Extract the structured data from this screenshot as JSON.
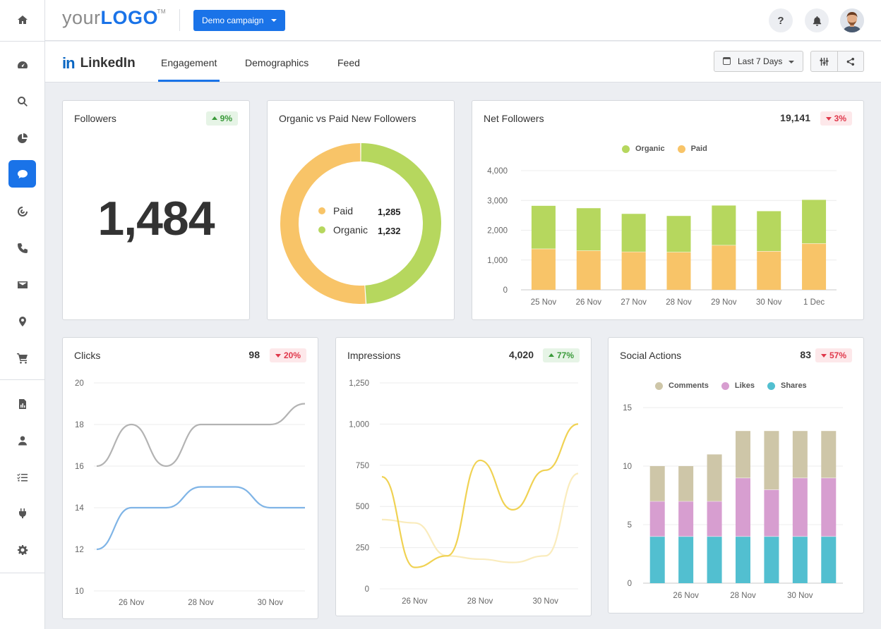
{
  "topbar": {
    "logo_part1": "your",
    "logo_part2": "LOGO",
    "logo_tm": "TM",
    "campaign_label": "Demo campaign",
    "help_label": "?"
  },
  "subnav": {
    "brand_icon": "in",
    "brand_label": "LinkedIn",
    "tabs": [
      {
        "label": "Engagement",
        "active": true
      },
      {
        "label": "Demographics",
        "active": false
      },
      {
        "label": "Feed",
        "active": false
      }
    ],
    "date_range": "Last 7 Days"
  },
  "sidebar": {
    "items": [
      {
        "icon": "home-icon"
      },
      {
        "icon": "dashboard-icon"
      },
      {
        "icon": "search-icon"
      },
      {
        "icon": "pie-chart-icon"
      },
      {
        "icon": "chat-bubble-icon",
        "active": true
      },
      {
        "icon": "target-icon"
      },
      {
        "icon": "phone-icon"
      },
      {
        "icon": "mail-icon"
      },
      {
        "icon": "location-pin-icon"
      },
      {
        "icon": "cart-icon"
      },
      {
        "icon": "report-icon"
      },
      {
        "icon": "user-icon"
      },
      {
        "icon": "checklist-icon"
      },
      {
        "icon": "plug-icon"
      },
      {
        "icon": "gear-icon"
      }
    ]
  },
  "colors": {
    "accent": "#1a73e8",
    "organic": "#b6d75e",
    "paid": "#f8c468",
    "comments": "#cec6a8",
    "likes": "#d79ed0",
    "shares": "#52bfd0",
    "clicks_a": "#b3b3b3",
    "clicks_b": "#7fb4e6",
    "impressions_a": "#f0d253",
    "impressions_b": "#faecbd",
    "up": "#3a9a3a",
    "down": "#e0384b"
  },
  "followers": {
    "title": "Followers",
    "value": "1,484",
    "change": "9%",
    "direction": "up"
  },
  "organic_vs_paid": {
    "title": "Organic vs Paid New Followers",
    "legend": [
      {
        "label": "Paid",
        "value": "1,285",
        "color": "#f8c468"
      },
      {
        "label": "Organic",
        "value": "1,232",
        "color": "#b6d75e"
      }
    ]
  },
  "net_followers": {
    "title": "Net Followers",
    "total": "19,141",
    "change": "3%",
    "direction": "down"
  },
  "clicks": {
    "title": "Clicks",
    "total": "98",
    "change": "20%",
    "direction": "down"
  },
  "impressions": {
    "title": "Impressions",
    "total": "4,020",
    "change": "77%",
    "direction": "up"
  },
  "social_actions": {
    "title": "Social Actions",
    "total": "83",
    "change": "57%",
    "direction": "down"
  },
  "chart_data": [
    {
      "id": "organic_vs_paid",
      "type": "pie",
      "donut": true,
      "labels": [
        "Paid",
        "Organic"
      ],
      "values": [
        1285,
        1232
      ]
    },
    {
      "id": "net_followers",
      "type": "bar",
      "stacked": true,
      "categories": [
        "25 Nov",
        "26 Nov",
        "27 Nov",
        "28 Nov",
        "29 Nov",
        "30 Nov",
        "1 Dec"
      ],
      "series": [
        {
          "name": "Paid",
          "values": [
            1380,
            1320,
            1280,
            1270,
            1500,
            1300,
            1560
          ]
        },
        {
          "name": "Organic",
          "values": [
            1440,
            1420,
            1270,
            1210,
            1330,
            1340,
            1460
          ]
        }
      ],
      "ylim": [
        0,
        4000
      ],
      "yticks": [
        "0",
        "1,000",
        "2,000",
        "3,000",
        "4,000"
      ],
      "grid": true,
      "legend": "top"
    },
    {
      "id": "clicks",
      "type": "line",
      "x": [
        "25 Nov",
        "26 Nov",
        "27 Nov",
        "28 Nov",
        "29 Nov",
        "30 Nov",
        "1 Dec"
      ],
      "xticks": [
        "26 Nov",
        "28 Nov",
        "30 Nov"
      ],
      "series": [
        {
          "values": [
            16,
            18,
            16,
            18,
            18,
            18,
            19
          ]
        },
        {
          "values": [
            12,
            14,
            14,
            15,
            15,
            14,
            14
          ]
        }
      ],
      "ylim": [
        10,
        20
      ],
      "yticks": [
        "10",
        "12",
        "14",
        "16",
        "18",
        "20"
      ],
      "grid": true
    },
    {
      "id": "impressions",
      "type": "line",
      "x": [
        "25 Nov",
        "26 Nov",
        "27 Nov",
        "28 Nov",
        "29 Nov",
        "30 Nov",
        "1 Dec"
      ],
      "xticks": [
        "26 Nov",
        "28 Nov",
        "30 Nov"
      ],
      "series": [
        {
          "values": [
            680,
            130,
            200,
            780,
            480,
            720,
            1000
          ]
        },
        {
          "values": [
            420,
            400,
            200,
            180,
            160,
            200,
            700
          ]
        }
      ],
      "ylim": [
        0,
        1250
      ],
      "yticks": [
        "0",
        "250",
        "500",
        "750",
        "1,000",
        "1,250"
      ],
      "grid": true
    },
    {
      "id": "social_actions",
      "type": "bar",
      "stacked": true,
      "categories": [
        "25 Nov",
        "26 Nov",
        "27 Nov",
        "28 Nov",
        "29 Nov",
        "30 Nov",
        "1 Dec"
      ],
      "xticks": [
        "26 Nov",
        "28 Nov",
        "30 Nov"
      ],
      "series": [
        {
          "name": "Shares",
          "values": [
            4,
            4,
            4,
            4,
            4,
            4,
            4
          ]
        },
        {
          "name": "Likes",
          "values": [
            3,
            3,
            3,
            5,
            4,
            5,
            5
          ]
        },
        {
          "name": "Comments",
          "values": [
            3,
            3,
            4,
            4,
            5,
            4,
            4
          ]
        }
      ],
      "ylim": [
        0,
        15
      ],
      "yticks": [
        "0",
        "5",
        "10",
        "15"
      ],
      "grid": true,
      "legend": "top"
    }
  ]
}
